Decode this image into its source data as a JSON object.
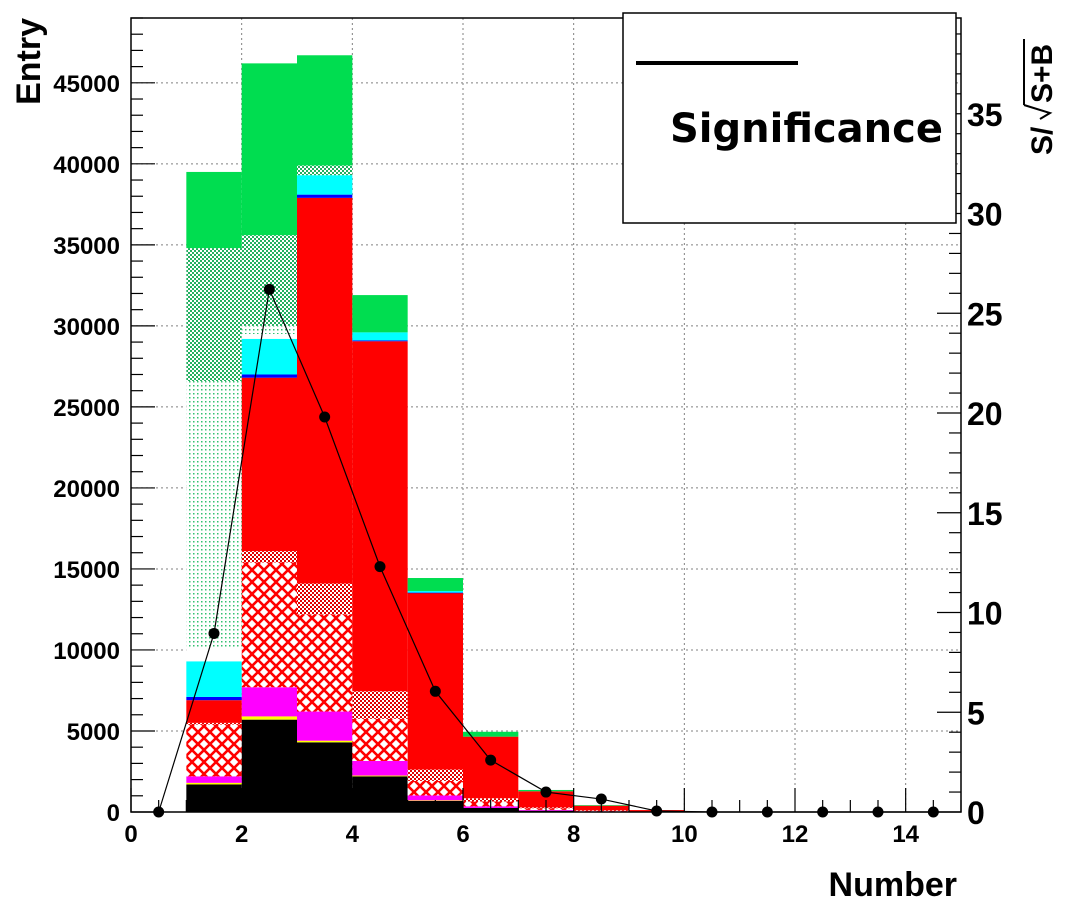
{
  "chart_data": {
    "type": "bar",
    "stacked": true,
    "xlabel": "Number",
    "ylabel": "Entry",
    "y2label": "S/√S+B",
    "xlim": [
      0,
      15
    ],
    "ylim": [
      0,
      49000
    ],
    "y2lim": [
      0,
      39.8
    ],
    "grid": true,
    "legend_position": "top-right",
    "x_ticks": [
      "0",
      "2",
      "4",
      "6",
      "8",
      "10",
      "12",
      "14"
    ],
    "y_ticks": [
      "0",
      "5000",
      "10000",
      "15000",
      "20000",
      "25000",
      "30000",
      "35000",
      "40000",
      "45000"
    ],
    "y2_ticks": [
      "0",
      "5",
      "10",
      "15",
      "20",
      "25",
      "30",
      "35"
    ],
    "bin_edges": [
      0,
      1,
      2,
      3,
      4,
      5,
      6,
      7,
      8,
      9,
      10,
      11,
      12,
      13,
      14,
      15
    ],
    "series": [
      {
        "color": "#000000",
        "pattern": "solid",
        "values": [
          0,
          1700,
          5700,
          4300,
          2200,
          700,
          250,
          80,
          30,
          10,
          0,
          0,
          0,
          0,
          0
        ]
      },
      {
        "color": "#ffff00",
        "pattern": "solid",
        "values": [
          0,
          100,
          200,
          100,
          50,
          20,
          0,
          0,
          0,
          0,
          0,
          0,
          0,
          0,
          0
        ]
      },
      {
        "color": "#ff00ff",
        "pattern": "solid",
        "values": [
          0,
          400,
          1800,
          1800,
          900,
          300,
          100,
          50,
          20,
          0,
          0,
          0,
          0,
          0,
          0
        ]
      },
      {
        "color": "#ff0000",
        "pattern": "crosshatch",
        "values": [
          0,
          3200,
          7700,
          6000,
          2600,
          900,
          300,
          100,
          30,
          10,
          0,
          0,
          0,
          0,
          0
        ]
      },
      {
        "color": "#ff0000",
        "pattern": "dense-dots",
        "values": [
          0,
          100,
          700,
          1900,
          1700,
          700,
          200,
          50,
          20,
          0,
          0,
          0,
          0,
          0,
          0
        ]
      },
      {
        "color": "#ff0000",
        "pattern": "solid",
        "values": [
          0,
          1400,
          10700,
          23800,
          21600,
          10900,
          3800,
          1000,
          300,
          100,
          20,
          0,
          0,
          0,
          0
        ]
      },
      {
        "color": "#0000ff",
        "pattern": "solid",
        "values": [
          0,
          200,
          200,
          200,
          50,
          20,
          0,
          0,
          0,
          0,
          0,
          0,
          0,
          0,
          0
        ]
      },
      {
        "color": "#00ffff",
        "pattern": "solid",
        "values": [
          0,
          2200,
          2200,
          1200,
          500,
          100,
          0,
          0,
          0,
          0,
          0,
          0,
          0,
          0,
          0
        ]
      },
      {
        "color": "#ffffff",
        "pattern": "solid",
        "values": [
          0,
          900,
          300,
          0,
          0,
          0,
          0,
          0,
          0,
          0,
          0,
          0,
          0,
          0,
          0
        ]
      },
      {
        "color": "#00cc55",
        "pattern": "sparse-dots",
        "values": [
          0,
          16400,
          500,
          0,
          0,
          0,
          0,
          0,
          0,
          0,
          0,
          0,
          0,
          0,
          0
        ]
      },
      {
        "color": "#00cc55",
        "pattern": "dense-dots",
        "values": [
          0,
          8200,
          5600,
          600,
          0,
          0,
          0,
          0,
          0,
          0,
          0,
          0,
          0,
          0,
          0
        ]
      },
      {
        "color": "#00dd50",
        "pattern": "solid",
        "values": [
          0,
          4700,
          10600,
          6800,
          2300,
          800,
          300,
          80,
          20,
          0,
          0,
          0,
          0,
          0,
          0
        ]
      }
    ],
    "significance": {
      "name": "Significance",
      "color": "#000000",
      "x": [
        0.5,
        1.5,
        2.5,
        3.5,
        4.5,
        5.5,
        6.5,
        7.5,
        8.5,
        9.5,
        10.5,
        11.5,
        12.5,
        13.5,
        14.5
      ],
      "y": [
        0,
        8.95,
        26.2,
        19.8,
        12.3,
        6.05,
        2.6,
        1.0,
        0.65,
        0.05,
        0,
        0,
        0,
        0,
        0
      ]
    }
  }
}
